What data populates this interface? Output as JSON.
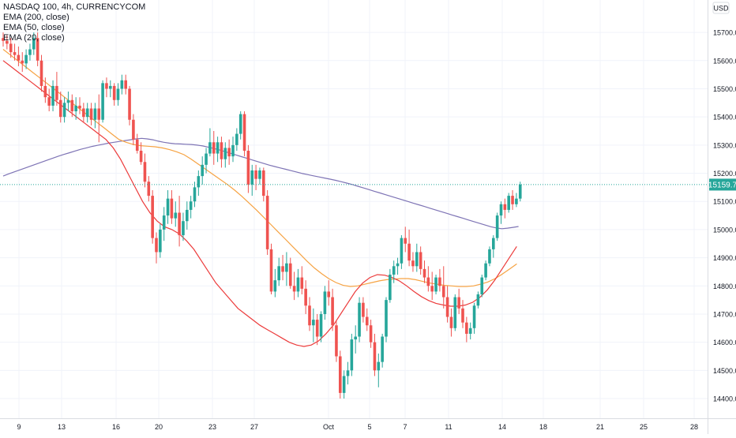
{
  "legend": {
    "symbol_line": "NASDAQ 100, 4h, CURRENCYCOM",
    "study1": "EMA (200, close)",
    "study2": "EMA (50, close)",
    "study3": "EMA (20, close)"
  },
  "chart_data": {
    "type": "candlestick",
    "title": "NASDAQ 100, 4h, CURRENCYCOM",
    "currency": "USD",
    "last_price": "15159.7",
    "ylim": [
      14330,
      15790
    ],
    "y_ticks": [
      "15700.0",
      "15600.0",
      "15500.0",
      "15400.0",
      "15300.0",
      "15200.0",
      "15100.0",
      "15000.0",
      "14900.0",
      "14800.0",
      "14700.0",
      "14600.0",
      "14500.0",
      "14400.0"
    ],
    "x_ticks": [
      "9",
      "13",
      "16",
      "20",
      "23",
      "27",
      "Oct",
      "5",
      "7",
      "11",
      "14",
      "18",
      "21",
      "25",
      "28"
    ],
    "colors": {
      "up": "#26a69a",
      "down": "#ef5350",
      "ema200": "#7e74b5",
      "ema50": "#f6a343",
      "ema20": "#ec3b3b",
      "price_label": "#26a69a"
    },
    "candles_ohlc": [
      [
        15680,
        15700,
        15650,
        15670
      ],
      [
        15670,
        15690,
        15640,
        15660
      ],
      [
        15660,
        15680,
        15610,
        15630
      ],
      [
        15630,
        15660,
        15600,
        15620
      ],
      [
        15620,
        15650,
        15580,
        15600
      ],
      [
        15600,
        15630,
        15560,
        15590
      ],
      [
        15590,
        15640,
        15570,
        15620
      ],
      [
        15620,
        15660,
        15600,
        15640
      ],
      [
        15640,
        15700,
        15620,
        15680
      ],
      [
        15680,
        15700,
        15580,
        15600
      ],
      [
        15600,
        15620,
        15490,
        15510
      ],
      [
        15510,
        15540,
        15450,
        15470
      ],
      [
        15470,
        15500,
        15420,
        15440
      ],
      [
        15440,
        15530,
        15420,
        15510
      ],
      [
        15510,
        15560,
        15440,
        15460
      ],
      [
        15460,
        15490,
        15380,
        15400
      ],
      [
        15400,
        15470,
        15380,
        15450
      ],
      [
        15450,
        15490,
        15420,
        15460
      ],
      [
        15460,
        15480,
        15400,
        15420
      ],
      [
        15420,
        15470,
        15390,
        15440
      ],
      [
        15440,
        15470,
        15410,
        15430
      ],
      [
        15430,
        15450,
        15380,
        15400
      ],
      [
        15400,
        15450,
        15380,
        15430
      ],
      [
        15430,
        15450,
        15370,
        15390
      ],
      [
        15390,
        15450,
        15360,
        15430
      ],
      [
        15430,
        15480,
        15310,
        15390
      ],
      [
        15390,
        15530,
        15380,
        15520
      ],
      [
        15520,
        15540,
        15470,
        15500
      ],
      [
        15500,
        15530,
        15470,
        15510
      ],
      [
        15510,
        15520,
        15440,
        15460
      ],
      [
        15460,
        15520,
        15440,
        15500
      ],
      [
        15500,
        15550,
        15480,
        15530
      ],
      [
        15530,
        15550,
        15480,
        15500
      ],
      [
        15500,
        15510,
        15370,
        15390
      ],
      [
        15390,
        15410,
        15300,
        15320
      ],
      [
        15320,
        15340,
        15270,
        15280
      ],
      [
        15280,
        15310,
        15230,
        15240
      ],
      [
        15240,
        15270,
        15150,
        15170
      ],
      [
        15170,
        15190,
        15100,
        15120
      ],
      [
        15120,
        15140,
        14950,
        14970
      ],
      [
        14970,
        14990,
        14880,
        14920
      ],
      [
        14920,
        15020,
        14900,
        15000
      ],
      [
        15000,
        15080,
        14960,
        15050
      ],
      [
        15050,
        15140,
        15020,
        15110
      ],
      [
        15110,
        15140,
        15020,
        15040
      ],
      [
        15040,
        15100,
        15010,
        15060
      ],
      [
        15060,
        15120,
        14940,
        14980
      ],
      [
        14980,
        15060,
        14960,
        15030
      ],
      [
        15030,
        15100,
        15000,
        15070
      ],
      [
        15070,
        15120,
        15040,
        15100
      ],
      [
        15100,
        15170,
        15080,
        15150
      ],
      [
        15150,
        15210,
        15120,
        15190
      ],
      [
        15190,
        15260,
        15160,
        15230
      ],
      [
        15230,
        15290,
        15200,
        15270
      ],
      [
        15270,
        15360,
        15260,
        15310
      ],
      [
        15310,
        15350,
        15230,
        15270
      ],
      [
        15270,
        15330,
        15240,
        15310
      ],
      [
        15310,
        15330,
        15220,
        15250
      ],
      [
        15250,
        15310,
        15220,
        15290
      ],
      [
        15290,
        15320,
        15230,
        15260
      ],
      [
        15260,
        15330,
        15240,
        15300
      ],
      [
        15300,
        15360,
        15280,
        15340
      ],
      [
        15340,
        15420,
        15320,
        15410
      ],
      [
        15410,
        15420,
        15260,
        15280
      ],
      [
        15280,
        15300,
        15130,
        15160
      ],
      [
        15160,
        15230,
        15120,
        15210
      ],
      [
        15210,
        15230,
        15140,
        15180
      ],
      [
        15180,
        15220,
        15160,
        15210
      ],
      [
        15210,
        15220,
        15100,
        15120
      ],
      [
        15120,
        15140,
        14910,
        14930
      ],
      [
        14930,
        14950,
        14770,
        14780
      ],
      [
        14780,
        14860,
        14760,
        14820
      ],
      [
        14820,
        14900,
        14800,
        14870
      ],
      [
        14870,
        14910,
        14820,
        14850
      ],
      [
        14850,
        14920,
        14800,
        14880
      ],
      [
        14880,
        14900,
        14790,
        14800
      ],
      [
        14800,
        14850,
        14750,
        14780
      ],
      [
        14780,
        14860,
        14760,
        14830
      ],
      [
        14830,
        14870,
        14770,
        14790
      ],
      [
        14790,
        14820,
        14700,
        14730
      ],
      [
        14730,
        14760,
        14640,
        14660
      ],
      [
        14660,
        14720,
        14600,
        14680
      ],
      [
        14680,
        14700,
        14590,
        14620
      ],
      [
        14620,
        14710,
        14600,
        14700
      ],
      [
        14700,
        14800,
        14680,
        14780
      ],
      [
        14780,
        14820,
        14730,
        14760
      ],
      [
        14760,
        14790,
        14640,
        14660
      ],
      [
        14660,
        14680,
        14530,
        14550
      ],
      [
        14550,
        14570,
        14400,
        14420
      ],
      [
        14420,
        14500,
        14400,
        14480
      ],
      [
        14480,
        14530,
        14450,
        14500
      ],
      [
        14500,
        14630,
        14480,
        14610
      ],
      [
        14610,
        14660,
        14560,
        14620
      ],
      [
        14620,
        14760,
        14600,
        14740
      ],
      [
        14740,
        14760,
        14670,
        14690
      ],
      [
        14690,
        14720,
        14640,
        14660
      ],
      [
        14660,
        14680,
        14580,
        14600
      ],
      [
        14600,
        14630,
        14480,
        14500
      ],
      [
        14500,
        14560,
        14440,
        14530
      ],
      [
        14530,
        14630,
        14510,
        14620
      ],
      [
        14620,
        14760,
        14600,
        14750
      ],
      [
        14750,
        14860,
        14740,
        14840
      ],
      [
        14840,
        14890,
        14810,
        14870
      ],
      [
        14870,
        14900,
        14840,
        14880
      ],
      [
        14880,
        14980,
        14860,
        14970
      ],
      [
        14970,
        15010,
        14920,
        14950
      ],
      [
        14950,
        15000,
        14870,
        14890
      ],
      [
        14890,
        14920,
        14850,
        14870
      ],
      [
        14870,
        14950,
        14850,
        14920
      ],
      [
        14920,
        14940,
        14840,
        14860
      ],
      [
        14860,
        14890,
        14810,
        14830
      ],
      [
        14830,
        14870,
        14780,
        14800
      ],
      [
        14800,
        14850,
        14750,
        14780
      ],
      [
        14780,
        14840,
        14770,
        14830
      ],
      [
        14830,
        14860,
        14780,
        14800
      ],
      [
        14800,
        14870,
        14720,
        14760
      ],
      [
        14760,
        14800,
        14670,
        14690
      ],
      [
        14690,
        14720,
        14620,
        14650
      ],
      [
        14650,
        14770,
        14640,
        14760
      ],
      [
        14760,
        14790,
        14700,
        14720
      ],
      [
        14720,
        14750,
        14650,
        14670
      ],
      [
        14670,
        14690,
        14600,
        14630
      ],
      [
        14630,
        14670,
        14610,
        14650
      ],
      [
        14650,
        14740,
        14630,
        14730
      ],
      [
        14730,
        14780,
        14720,
        14770
      ],
      [
        14770,
        14840,
        14760,
        14830
      ],
      [
        14830,
        14890,
        14820,
        14880
      ],
      [
        14880,
        14940,
        14870,
        14930
      ],
      [
        14930,
        14980,
        14900,
        14970
      ],
      [
        14970,
        15060,
        14960,
        15050
      ],
      [
        15050,
        15100,
        15020,
        15090
      ],
      [
        15090,
        15110,
        15040,
        15070
      ],
      [
        15070,
        15130,
        15060,
        15120
      ],
      [
        15120,
        15140,
        15070,
        15090
      ],
      [
        15090,
        15130,
        15080,
        15110
      ],
      [
        15110,
        15170,
        15100,
        15160
      ]
    ],
    "ema200": [
      15190,
      15198,
      15205,
      15212,
      15219,
      15226,
      15233,
      15240,
      15247,
      15254,
      15261,
      15267,
      15273,
      15279,
      15285,
      15290,
      15295,
      15299,
      15303,
      15307,
      15310,
      15313,
      15316,
      15319,
      15322,
      15324,
      15322,
      15319,
      15314,
      15310,
      15307,
      15305,
      15304,
      15303,
      15302,
      15300,
      15297,
      15293,
      15288,
      15283,
      15277,
      15271,
      15265,
      15259,
      15253,
      15247,
      15241,
      15235,
      15229,
      15224,
      15219,
      15214,
      15209,
      15204,
      15199,
      15195,
      15191,
      15187,
      15183,
      15179,
      15175,
      15170,
      15165,
      15160,
      15154,
      15148,
      15142,
      15136,
      15130,
      15124,
      15118,
      15112,
      15106,
      15100,
      15094,
      15088,
      15082,
      15076,
      15070,
      15064,
      15058,
      15052,
      15046,
      15040,
      15034,
      15028,
      15022,
      15016,
      15010,
      15006,
      15003,
      15005,
      15008,
      15011
    ],
    "ema50": [
      15640,
      15620,
      15600,
      15580,
      15560,
      15540,
      15520,
      15500,
      15480,
      15460,
      15440,
      15420,
      15400,
      15380,
      15360,
      15340,
      15320,
      15310,
      15302,
      15298,
      15296,
      15294,
      15290,
      15284,
      15276,
      15266,
      15250,
      15232,
      15214,
      15196,
      15178,
      15160,
      15140,
      15118,
      15094,
      15070,
      15044,
      15018,
      14992,
      14966,
      14940,
      14914,
      14888,
      14864,
      14844,
      14826,
      14812,
      14802,
      14798,
      14800,
      14806,
      14812,
      14818,
      14822,
      14824,
      14826,
      14826,
      14822,
      14816,
      14810,
      14806,
      14802,
      14800,
      14798,
      14798,
      14800,
      14806,
      14814,
      14826,
      14842,
      14860,
      14878
    ],
    "ema20": [
      15600,
      15580,
      15560,
      15540,
      15520,
      15500,
      15480,
      15460,
      15440,
      15420,
      15400,
      15380,
      15360,
      15340,
      15320,
      15290,
      15250,
      15200,
      15150,
      15100,
      15060,
      15030,
      15010,
      15000,
      14985,
      14960,
      14930,
      14890,
      14850,
      14810,
      14780,
      14750,
      14720,
      14700,
      14680,
      14660,
      14645,
      14630,
      14615,
      14600,
      14590,
      14585,
      14590,
      14605,
      14630,
      14660,
      14700,
      14740,
      14780,
      14810,
      14830,
      14840,
      14838,
      14830,
      14818,
      14800,
      14780,
      14762,
      14748,
      14738,
      14732,
      14728,
      14728,
      14732,
      14742,
      14760,
      14786,
      14820,
      14860,
      14900,
      14940
    ]
  }
}
